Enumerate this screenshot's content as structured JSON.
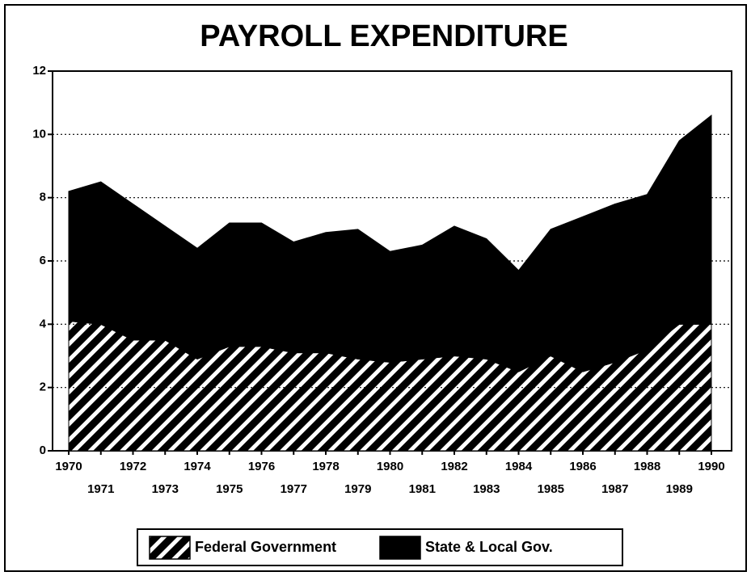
{
  "chart_data": {
    "type": "stacked_area",
    "title": "PAYROLL EXPENDITURE",
    "categories": [
      "1970",
      "1971",
      "1972",
      "1973",
      "1974",
      "1975",
      "1976",
      "1977",
      "1978",
      "1979",
      "1980",
      "1981",
      "1982",
      "1983",
      "1984",
      "1985",
      "1986",
      "1987",
      "1988",
      "1989",
      "1990"
    ],
    "series": [
      {
        "name": "Federal Government",
        "color": "#000000",
        "pattern": "hatch",
        "values": [
          4.1,
          4.0,
          3.5,
          3.5,
          2.9,
          3.3,
          3.3,
          3.1,
          3.1,
          2.9,
          2.8,
          2.9,
          3.0,
          2.9,
          2.5,
          3.0,
          2.5,
          2.8,
          3.2,
          4.0,
          4.0
        ]
      },
      {
        "name": "State & Local Gov.",
        "color": "#000000",
        "pattern": "solid",
        "values": [
          4.1,
          4.5,
          4.3,
          3.6,
          3.5,
          3.9,
          3.9,
          3.5,
          3.8,
          4.1,
          3.5,
          3.6,
          4.1,
          3.8,
          3.2,
          4.0,
          4.9,
          5.0,
          4.9,
          5.8,
          6.6
        ]
      }
    ],
    "ylim": [
      0,
      12
    ],
    "yticks": [
      0,
      2,
      4,
      6,
      8,
      10,
      12
    ],
    "grid": true,
    "legend": "bottom"
  }
}
